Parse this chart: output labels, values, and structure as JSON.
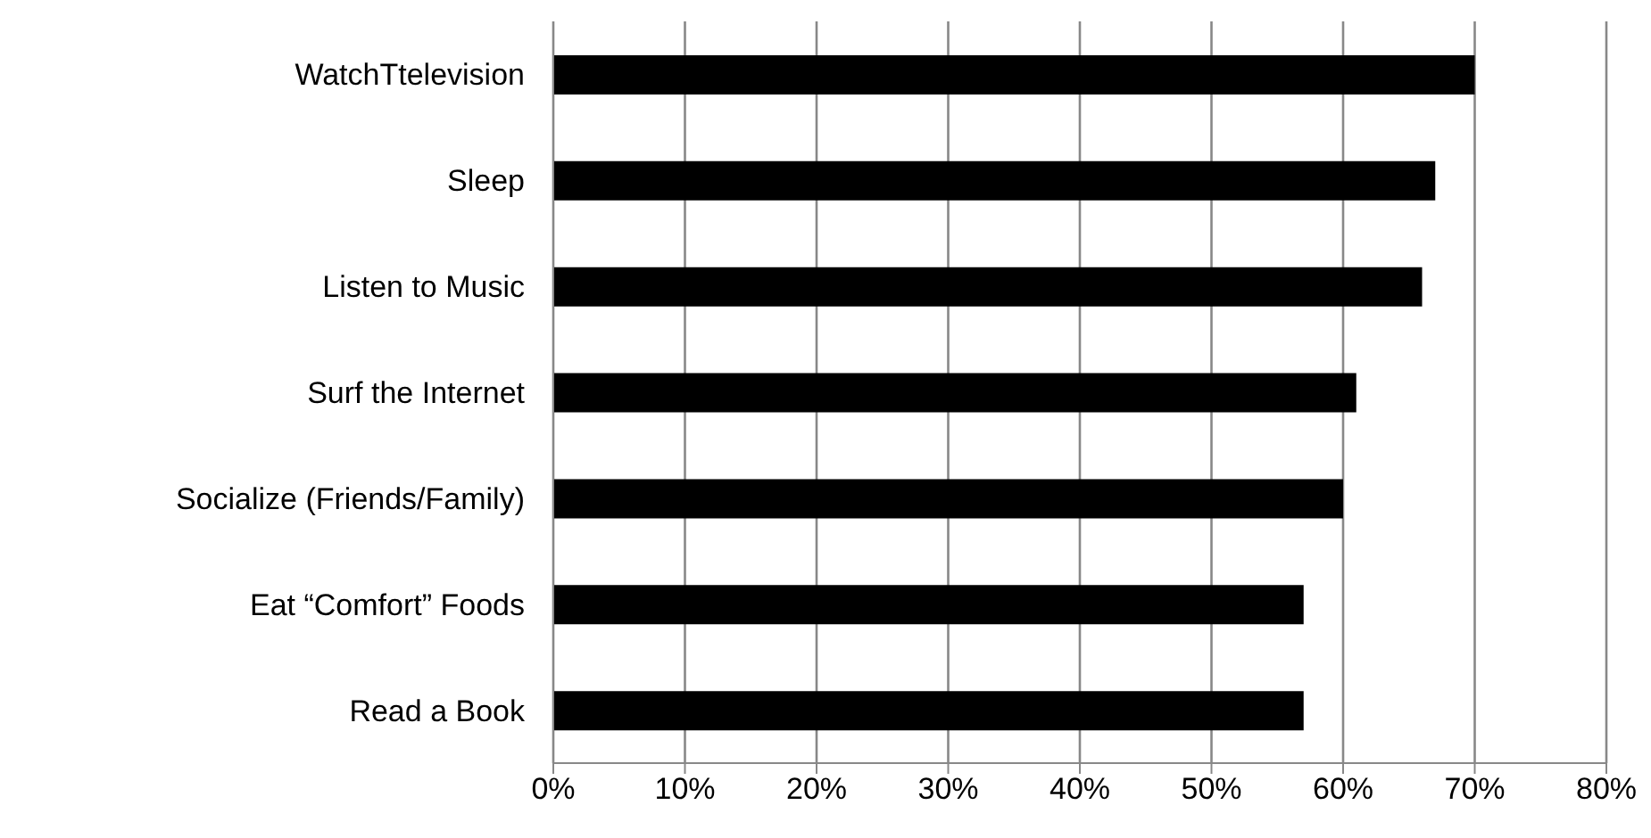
{
  "chart_data": {
    "type": "bar",
    "orientation": "horizontal",
    "categories": [
      "WatchTtelevision",
      "Sleep",
      "Listen to Music",
      "Surf the Internet",
      "Socialize (Friends/Family)",
      "Eat “Comfort” Foods",
      "Read a Book"
    ],
    "values": [
      70,
      67,
      66,
      61,
      60,
      57,
      57
    ],
    "color": "#000000",
    "xlim": [
      0,
      80
    ],
    "xticks": [
      {
        "value": 0,
        "label": "0%"
      },
      {
        "value": 10,
        "label": "10%"
      },
      {
        "value": 20,
        "label": "20%"
      },
      {
        "value": 30,
        "label": "30%"
      },
      {
        "value": 40,
        "label": "40%"
      },
      {
        "value": 50,
        "label": "50%"
      },
      {
        "value": 60,
        "label": "60%"
      },
      {
        "value": 70,
        "label": "70%"
      },
      {
        "value": 80,
        "label": "80%"
      }
    ],
    "grid": "x",
    "legend": false
  }
}
